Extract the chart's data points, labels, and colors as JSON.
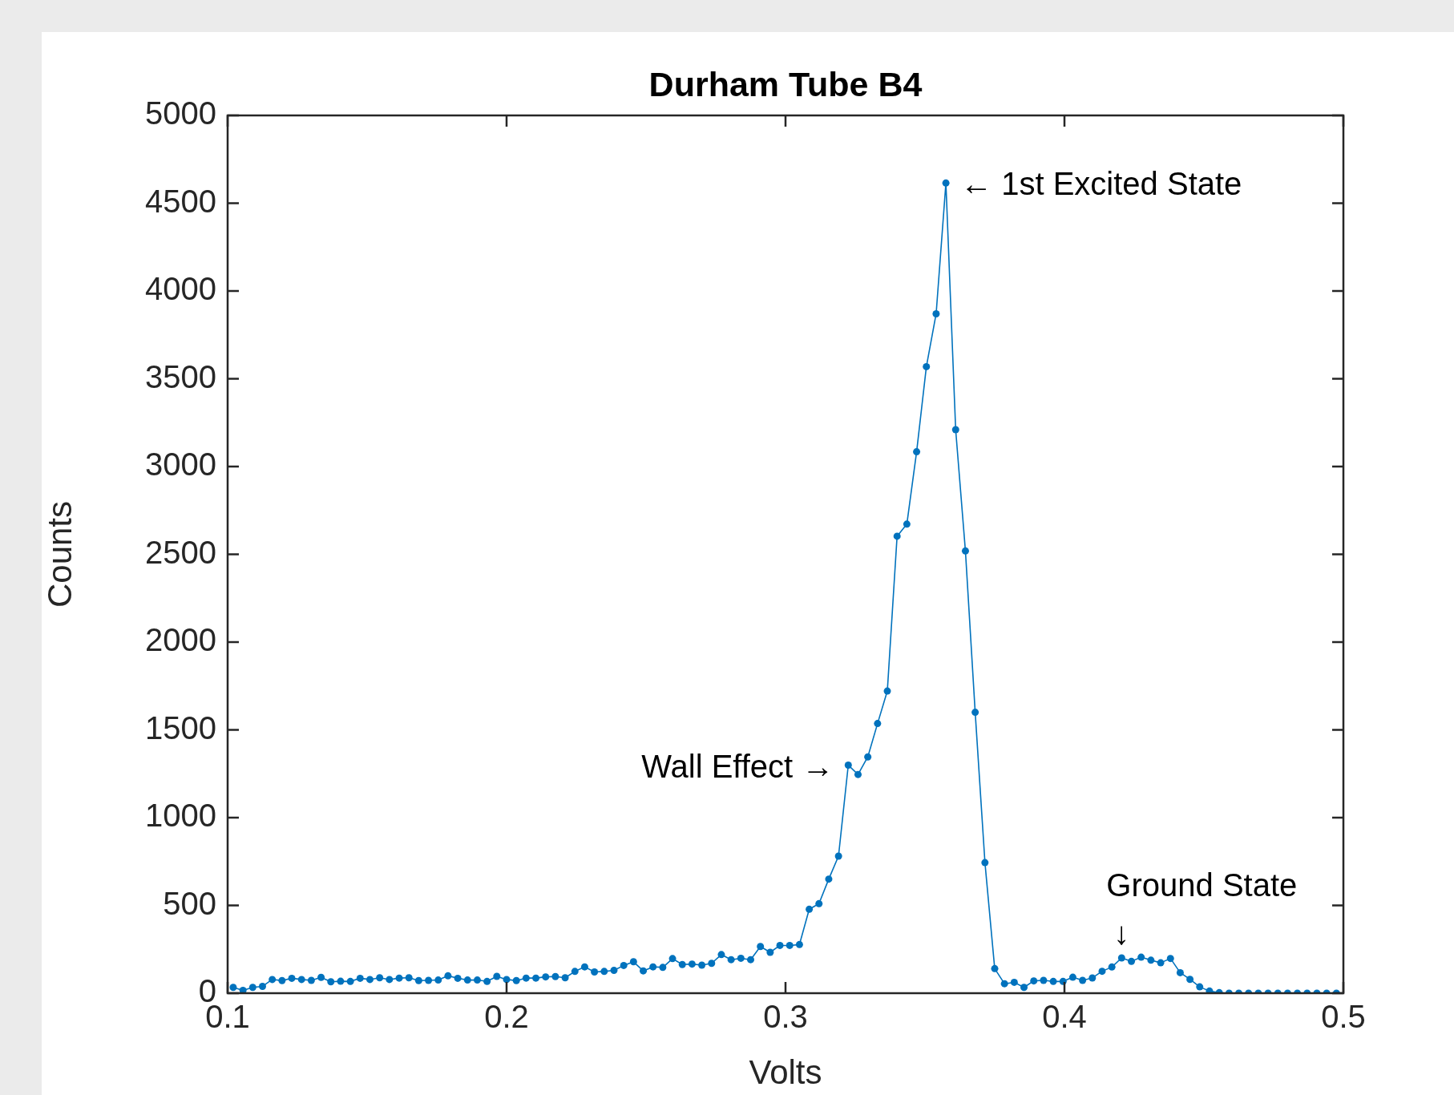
{
  "chart_data": {
    "type": "line",
    "title": "Durham Tube B4",
    "xlabel": "Volts",
    "ylabel": "Counts",
    "x": [
      0.102,
      0.1055,
      0.109,
      0.1125,
      0.116,
      0.1195,
      0.123,
      0.1265,
      0.13,
      0.1335,
      0.137,
      0.1405,
      0.144,
      0.1475,
      0.151,
      0.1545,
      0.158,
      0.1615,
      0.165,
      0.1685,
      0.172,
      0.1755,
      0.179,
      0.1825,
      0.186,
      0.1895,
      0.193,
      0.1965,
      0.2,
      0.2035,
      0.207,
      0.2105,
      0.214,
      0.2175,
      0.221,
      0.2245,
      0.228,
      0.2315,
      0.235,
      0.2385,
      0.242,
      0.2455,
      0.249,
      0.2525,
      0.256,
      0.2595,
      0.263,
      0.2665,
      0.27,
      0.2735,
      0.277,
      0.2805,
      0.284,
      0.2875,
      0.291,
      0.2945,
      0.298,
      0.3015,
      0.305,
      0.3085,
      0.312,
      0.3155,
      0.319,
      0.3225,
      0.326,
      0.3295,
      0.333,
      0.3365,
      0.34,
      0.3435,
      0.347,
      0.3505,
      0.354,
      0.3575,
      0.361,
      0.3645,
      0.368,
      0.3715,
      0.375,
      0.3785,
      0.382,
      0.3855,
      0.389,
      0.3925,
      0.396,
      0.3995,
      0.403,
      0.4065,
      0.41,
      0.4135,
      0.417,
      0.4205,
      0.424,
      0.4275,
      0.431,
      0.4345,
      0.438,
      0.4415,
      0.445,
      0.4485,
      0.452,
      0.4555,
      0.459,
      0.4625,
      0.466,
      0.4695,
      0.473,
      0.4765,
      0.48,
      0.4835,
      0.487,
      0.4905,
      0.494,
      0.4975
    ],
    "series": [
      {
        "color": "#0072bd",
        "values": [
          33,
          16,
          33,
          39,
          78,
          72,
          85,
          78,
          73,
          90,
          65,
          68,
          67,
          85,
          78,
          88,
          78,
          86,
          88,
          72,
          73,
          75,
          99,
          85,
          75,
          75,
          67,
          96,
          78,
          72,
          86,
          86,
          93,
          95,
          88,
          124,
          150,
          121,
          124,
          130,
          158,
          179,
          127,
          150,
          147,
          197,
          163,
          166,
          160,
          170,
          220,
          191,
          199,
          191,
          266,
          233,
          272,
          272,
          277,
          478,
          510,
          650,
          781,
          1299,
          1246,
          1346,
          1536,
          1721,
          2603,
          2672,
          3084,
          3569,
          3870,
          4615,
          3210,
          2519,
          1600,
          744,
          140,
          54,
          62,
          33,
          70,
          73,
          67,
          67,
          91,
          73,
          87,
          125,
          149,
          201,
          181,
          205,
          188,
          173,
          198,
          117,
          79,
          36,
          12,
          3,
          0,
          0,
          0,
          0,
          0,
          0,
          0,
          0,
          0,
          0,
          0,
          0
        ]
      }
    ],
    "xlim": [
      0.1,
      0.5
    ],
    "xticks": [
      0.1,
      0.2,
      0.3,
      0.4,
      0.5
    ],
    "ylim": [
      0,
      5000
    ],
    "yticks": [
      0,
      500,
      1000,
      1500,
      2000,
      2500,
      3000,
      3500,
      4000,
      4500,
      5000
    ],
    "marker": "circle",
    "line_style": "solid",
    "annotations": [
      {
        "text": "← 1st Excited State",
        "x": 0.3575,
        "y": 4615
      },
      {
        "text": "Wall Effect →",
        "x": 0.3225,
        "y": 1299
      },
      {
        "text": "↓",
        "x": 0.4205,
        "y": 201
      },
      "Ground State"
    ]
  }
}
